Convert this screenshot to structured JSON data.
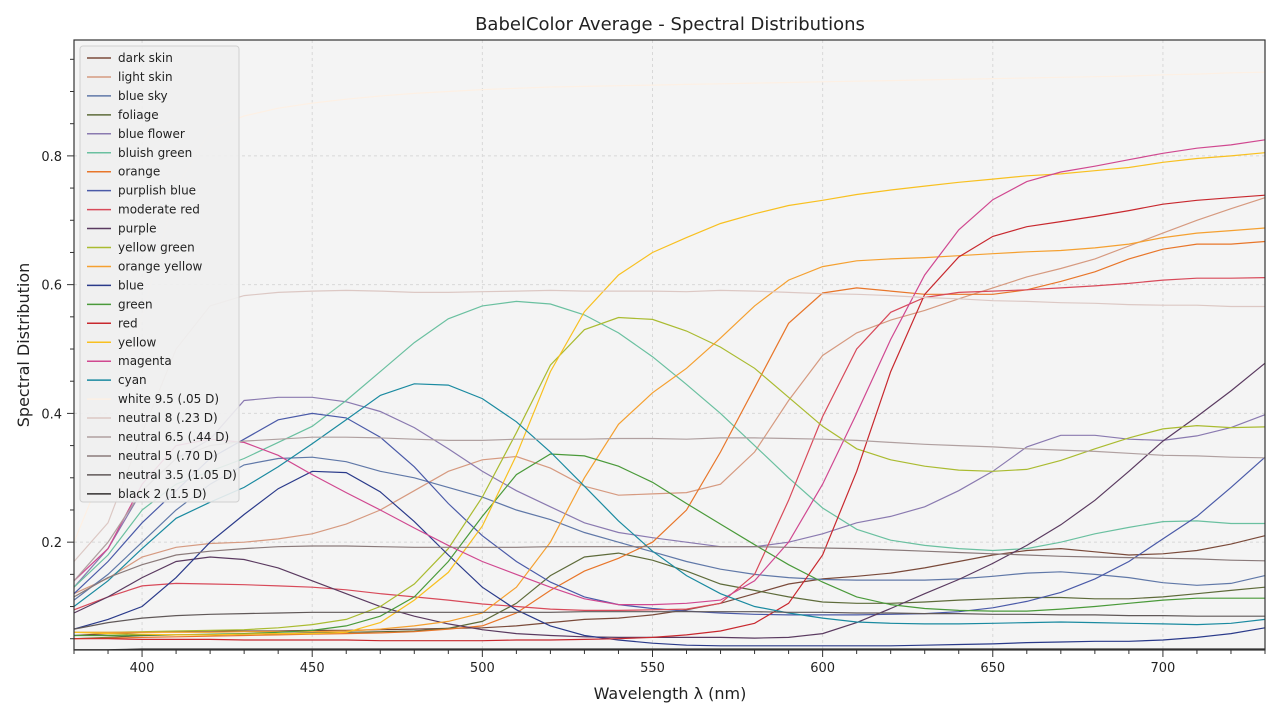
{
  "chart_data": {
    "type": "line",
    "title": "BabelColor Average - Spectral Distributions",
    "xlabel": "Wavelength λ (nm)",
    "ylabel": "Spectral Distribution",
    "xlim": [
      380,
      730
    ],
    "ylim": [
      0.0325,
      0.98
    ],
    "x_ticks": [
      400,
      450,
      500,
      550,
      600,
      650,
      700
    ],
    "y_ticks": [
      0.2,
      0.4,
      0.6,
      0.8
    ],
    "x_tick_labels": [
      "400",
      "450",
      "500",
      "550",
      "600",
      "650",
      "700"
    ],
    "y_tick_labels": [
      "0.2",
      "0.4",
      "0.6",
      "0.8"
    ],
    "grid": true,
    "legend_position": "upper-left",
    "x": [
      380,
      390,
      400,
      410,
      420,
      430,
      440,
      450,
      460,
      470,
      480,
      490,
      500,
      510,
      520,
      530,
      540,
      550,
      560,
      570,
      580,
      590,
      600,
      610,
      620,
      630,
      640,
      650,
      660,
      670,
      680,
      690,
      700,
      710,
      720,
      730
    ],
    "series": [
      {
        "name": "dark skin",
        "color": "#7a4a3a",
        "values": [
          0.055,
          0.058,
          0.06,
          0.061,
          0.062,
          0.062,
          0.062,
          0.063,
          0.063,
          0.064,
          0.065,
          0.066,
          0.067,
          0.07,
          0.075,
          0.08,
          0.082,
          0.087,
          0.095,
          0.105,
          0.12,
          0.135,
          0.143,
          0.147,
          0.152,
          0.16,
          0.17,
          0.18,
          0.187,
          0.19,
          0.185,
          0.18,
          0.182,
          0.187,
          0.197,
          0.21
        ]
      },
      {
        "name": "light skin",
        "color": "#d69a80",
        "values": [
          0.12,
          0.144,
          0.177,
          0.192,
          0.198,
          0.2,
          0.205,
          0.213,
          0.228,
          0.25,
          0.28,
          0.31,
          0.328,
          0.333,
          0.315,
          0.287,
          0.273,
          0.275,
          0.277,
          0.29,
          0.34,
          0.42,
          0.49,
          0.525,
          0.545,
          0.56,
          0.578,
          0.595,
          0.612,
          0.625,
          0.64,
          0.66,
          0.68,
          0.7,
          0.718,
          0.735
        ]
      },
      {
        "name": "blue sky",
        "color": "#6078a8",
        "values": [
          0.11,
          0.15,
          0.2,
          0.25,
          0.29,
          0.32,
          0.33,
          0.332,
          0.325,
          0.31,
          0.3,
          0.285,
          0.27,
          0.25,
          0.235,
          0.215,
          0.2,
          0.185,
          0.17,
          0.158,
          0.15,
          0.145,
          0.142,
          0.141,
          0.141,
          0.141,
          0.143,
          0.147,
          0.152,
          0.154,
          0.15,
          0.145,
          0.137,
          0.133,
          0.136,
          0.148
        ]
      },
      {
        "name": "foliage",
        "color": "#5e6b3a",
        "values": [
          0.05,
          0.052,
          0.055,
          0.056,
          0.056,
          0.057,
          0.058,
          0.059,
          0.06,
          0.061,
          0.062,
          0.066,
          0.077,
          0.105,
          0.148,
          0.177,
          0.183,
          0.172,
          0.155,
          0.135,
          0.125,
          0.115,
          0.107,
          0.105,
          0.105,
          0.107,
          0.11,
          0.112,
          0.114,
          0.114,
          0.112,
          0.112,
          0.115,
          0.12,
          0.125,
          0.13
        ]
      },
      {
        "name": "blue flower",
        "color": "#8a7ab0",
        "values": [
          0.13,
          0.19,
          0.28,
          0.33,
          0.36,
          0.42,
          0.425,
          0.425,
          0.418,
          0.403,
          0.378,
          0.345,
          0.31,
          0.28,
          0.255,
          0.23,
          0.215,
          0.207,
          0.2,
          0.193,
          0.193,
          0.2,
          0.213,
          0.23,
          0.24,
          0.255,
          0.28,
          0.31,
          0.348,
          0.366,
          0.366,
          0.36,
          0.358,
          0.365,
          0.378,
          0.398
        ]
      },
      {
        "name": "bluish green",
        "color": "#6ac0a0",
        "values": [
          0.13,
          0.18,
          0.25,
          0.29,
          0.31,
          0.33,
          0.355,
          0.38,
          0.42,
          0.465,
          0.51,
          0.547,
          0.567,
          0.574,
          0.57,
          0.553,
          0.525,
          0.488,
          0.445,
          0.4,
          0.35,
          0.3,
          0.253,
          0.22,
          0.203,
          0.195,
          0.19,
          0.187,
          0.19,
          0.2,
          0.213,
          0.223,
          0.232,
          0.233,
          0.229,
          0.229
        ]
      },
      {
        "name": "orange",
        "color": "#e8762a",
        "values": [
          0.05,
          0.051,
          0.052,
          0.053,
          0.054,
          0.055,
          0.056,
          0.057,
          0.058,
          0.059,
          0.061,
          0.065,
          0.07,
          0.09,
          0.125,
          0.155,
          0.175,
          0.2,
          0.25,
          0.34,
          0.44,
          0.54,
          0.587,
          0.595,
          0.59,
          0.585,
          0.585,
          0.585,
          0.592,
          0.605,
          0.62,
          0.64,
          0.655,
          0.663,
          0.663,
          0.667
        ]
      },
      {
        "name": "purplish blue",
        "color": "#4a5aa8",
        "values": [
          0.12,
          0.17,
          0.23,
          0.28,
          0.33,
          0.36,
          0.39,
          0.4,
          0.393,
          0.363,
          0.317,
          0.26,
          0.21,
          0.17,
          0.138,
          0.115,
          0.103,
          0.097,
          0.093,
          0.09,
          0.088,
          0.087,
          0.087,
          0.087,
          0.088,
          0.089,
          0.092,
          0.098,
          0.108,
          0.122,
          0.143,
          0.17,
          0.205,
          0.24,
          0.285,
          0.332
        ]
      },
      {
        "name": "moderate red",
        "color": "#d84a5a",
        "values": [
          0.095,
          0.115,
          0.132,
          0.136,
          0.135,
          0.134,
          0.132,
          0.13,
          0.126,
          0.12,
          0.115,
          0.11,
          0.104,
          0.1,
          0.096,
          0.094,
          0.094,
          0.095,
          0.096,
          0.105,
          0.15,
          0.265,
          0.395,
          0.5,
          0.557,
          0.58,
          0.588,
          0.59,
          0.592,
          0.595,
          0.598,
          0.602,
          0.607,
          0.61,
          0.61,
          0.611
        ]
      },
      {
        "name": "purple",
        "color": "#5a3a60",
        "values": [
          0.09,
          0.115,
          0.145,
          0.17,
          0.177,
          0.173,
          0.16,
          0.14,
          0.12,
          0.1,
          0.085,
          0.073,
          0.064,
          0.058,
          0.055,
          0.053,
          0.052,
          0.052,
          0.052,
          0.052,
          0.051,
          0.052,
          0.058,
          0.075,
          0.097,
          0.12,
          0.142,
          0.167,
          0.195,
          0.227,
          0.265,
          0.31,
          0.357,
          0.395,
          0.435,
          0.478
        ]
      },
      {
        "name": "yellow green",
        "color": "#aabb30",
        "values": [
          0.06,
          0.06,
          0.061,
          0.062,
          0.063,
          0.064,
          0.067,
          0.072,
          0.08,
          0.1,
          0.135,
          0.19,
          0.27,
          0.37,
          0.475,
          0.53,
          0.549,
          0.546,
          0.528,
          0.503,
          0.47,
          0.425,
          0.38,
          0.345,
          0.328,
          0.318,
          0.312,
          0.31,
          0.313,
          0.327,
          0.345,
          0.362,
          0.376,
          0.381,
          0.378,
          0.379
        ]
      },
      {
        "name": "orange yellow",
        "color": "#f5a030",
        "values": [
          0.06,
          0.06,
          0.06,
          0.06,
          0.06,
          0.061,
          0.061,
          0.061,
          0.062,
          0.065,
          0.07,
          0.077,
          0.09,
          0.13,
          0.2,
          0.3,
          0.383,
          0.432,
          0.47,
          0.517,
          0.567,
          0.607,
          0.628,
          0.637,
          0.64,
          0.642,
          0.645,
          0.648,
          0.651,
          0.653,
          0.657,
          0.663,
          0.673,
          0.68,
          0.684,
          0.688
        ]
      },
      {
        "name": "blue",
        "color": "#2a3a8a",
        "values": [
          0.065,
          0.08,
          0.1,
          0.145,
          0.2,
          0.243,
          0.283,
          0.31,
          0.308,
          0.278,
          0.232,
          0.18,
          0.13,
          0.095,
          0.07,
          0.055,
          0.048,
          0.043,
          0.04,
          0.039,
          0.039,
          0.039,
          0.039,
          0.039,
          0.039,
          0.04,
          0.041,
          0.042,
          0.044,
          0.045,
          0.046,
          0.046,
          0.048,
          0.052,
          0.058,
          0.067
        ]
      },
      {
        "name": "green",
        "color": "#4a9a3a",
        "values": [
          0.055,
          0.055,
          0.056,
          0.056,
          0.057,
          0.058,
          0.06,
          0.063,
          0.07,
          0.085,
          0.115,
          0.17,
          0.24,
          0.305,
          0.337,
          0.334,
          0.318,
          0.293,
          0.26,
          0.228,
          0.196,
          0.165,
          0.138,
          0.115,
          0.103,
          0.097,
          0.094,
          0.093,
          0.093,
          0.096,
          0.1,
          0.105,
          0.11,
          0.113,
          0.113,
          0.113
        ]
      },
      {
        "name": "red",
        "color": "#c8282e",
        "values": [
          0.05,
          0.05,
          0.049,
          0.049,
          0.049,
          0.048,
          0.048,
          0.048,
          0.048,
          0.047,
          0.047,
          0.047,
          0.047,
          0.048,
          0.048,
          0.049,
          0.05,
          0.052,
          0.056,
          0.062,
          0.074,
          0.105,
          0.18,
          0.31,
          0.465,
          0.585,
          0.643,
          0.675,
          0.69,
          0.698,
          0.706,
          0.715,
          0.725,
          0.731,
          0.735,
          0.739
        ]
      },
      {
        "name": "yellow",
        "color": "#f8c020",
        "values": [
          0.06,
          0.058,
          0.057,
          0.056,
          0.056,
          0.057,
          0.058,
          0.058,
          0.06,
          0.075,
          0.11,
          0.153,
          0.225,
          0.335,
          0.465,
          0.558,
          0.615,
          0.65,
          0.673,
          0.695,
          0.71,
          0.723,
          0.731,
          0.74,
          0.747,
          0.753,
          0.759,
          0.764,
          0.769,
          0.772,
          0.777,
          0.782,
          0.79,
          0.796,
          0.8,
          0.805
        ]
      },
      {
        "name": "magenta",
        "color": "#d04890",
        "values": [
          0.14,
          0.19,
          0.29,
          0.35,
          0.36,
          0.355,
          0.335,
          0.305,
          0.277,
          0.25,
          0.222,
          0.195,
          0.17,
          0.15,
          0.13,
          0.112,
          0.103,
          0.103,
          0.105,
          0.11,
          0.14,
          0.2,
          0.29,
          0.4,
          0.515,
          0.615,
          0.685,
          0.732,
          0.76,
          0.775,
          0.784,
          0.794,
          0.804,
          0.812,
          0.817,
          0.825
        ]
      },
      {
        "name": "cyan",
        "color": "#1a8aa0",
        "values": [
          0.1,
          0.14,
          0.19,
          0.237,
          0.262,
          0.285,
          0.317,
          0.353,
          0.39,
          0.428,
          0.446,
          0.444,
          0.423,
          0.387,
          0.34,
          0.287,
          0.233,
          0.186,
          0.148,
          0.12,
          0.1,
          0.09,
          0.082,
          0.076,
          0.074,
          0.073,
          0.073,
          0.074,
          0.075,
          0.076,
          0.075,
          0.074,
          0.073,
          0.072,
          0.074,
          0.08
        ]
      },
      {
        "name": "white 9.5 (.05 D)",
        "color": "#fdf0e4",
        "values": [
          0.2,
          0.33,
          0.55,
          0.75,
          0.84,
          0.862,
          0.874,
          0.882,
          0.888,
          0.893,
          0.897,
          0.9,
          0.903,
          0.905,
          0.907,
          0.908,
          0.909,
          0.91,
          0.911,
          0.912,
          0.913,
          0.914,
          0.915,
          0.916,
          0.917,
          0.918,
          0.919,
          0.92,
          0.921,
          0.922,
          0.923,
          0.924,
          0.926,
          0.927,
          0.929,
          0.93
        ]
      },
      {
        "name": "neutral 8 (.23 D)",
        "color": "#dcc8c4",
        "values": [
          0.17,
          0.23,
          0.37,
          0.5,
          0.567,
          0.583,
          0.588,
          0.59,
          0.591,
          0.59,
          0.588,
          0.588,
          0.589,
          0.59,
          0.591,
          0.59,
          0.59,
          0.59,
          0.589,
          0.591,
          0.59,
          0.588,
          0.586,
          0.585,
          0.583,
          0.58,
          0.578,
          0.575,
          0.574,
          0.572,
          0.571,
          0.569,
          0.568,
          0.568,
          0.566,
          0.566
        ]
      },
      {
        "name": "neutral 6.5 (.44 D)",
        "color": "#b0a0a0",
        "values": [
          0.14,
          0.2,
          0.28,
          0.33,
          0.35,
          0.357,
          0.36,
          0.363,
          0.363,
          0.362,
          0.36,
          0.358,
          0.358,
          0.36,
          0.36,
          0.36,
          0.361,
          0.361,
          0.36,
          0.362,
          0.362,
          0.361,
          0.36,
          0.358,
          0.355,
          0.352,
          0.35,
          0.348,
          0.345,
          0.343,
          0.341,
          0.338,
          0.335,
          0.334,
          0.332,
          0.331
        ]
      },
      {
        "name": "neutral 5 (.70 D)",
        "color": "#8a7a7a",
        "values": [
          0.115,
          0.145,
          0.165,
          0.18,
          0.186,
          0.19,
          0.193,
          0.194,
          0.194,
          0.193,
          0.192,
          0.192,
          0.192,
          0.192,
          0.193,
          0.193,
          0.193,
          0.193,
          0.193,
          0.193,
          0.193,
          0.192,
          0.191,
          0.19,
          0.188,
          0.186,
          0.184,
          0.182,
          0.18,
          0.178,
          0.177,
          0.176,
          0.175,
          0.174,
          0.172,
          0.171
        ]
      },
      {
        "name": "neutral 3.5 (1.05 D)",
        "color": "#605858",
        "values": [
          0.065,
          0.075,
          0.082,
          0.086,
          0.088,
          0.089,
          0.09,
          0.091,
          0.091,
          0.091,
          0.091,
          0.091,
          0.091,
          0.091,
          0.091,
          0.092,
          0.092,
          0.092,
          0.092,
          0.092,
          0.092,
          0.091,
          0.091,
          0.09,
          0.09,
          0.089,
          0.089,
          0.088,
          0.088,
          0.087,
          0.087,
          0.086,
          0.086,
          0.085,
          0.085,
          0.085
        ]
      },
      {
        "name": "black 2 (1.5 D)",
        "color": "#333030",
        "values": [
          0.033,
          0.033,
          0.034,
          0.034,
          0.034,
          0.034,
          0.034,
          0.034,
          0.034,
          0.034,
          0.034,
          0.034,
          0.034,
          0.034,
          0.034,
          0.034,
          0.034,
          0.034,
          0.034,
          0.034,
          0.034,
          0.034,
          0.034,
          0.034,
          0.034,
          0.034,
          0.034,
          0.034,
          0.034,
          0.034,
          0.034,
          0.034,
          0.034,
          0.034,
          0.034,
          0.034
        ]
      }
    ]
  }
}
